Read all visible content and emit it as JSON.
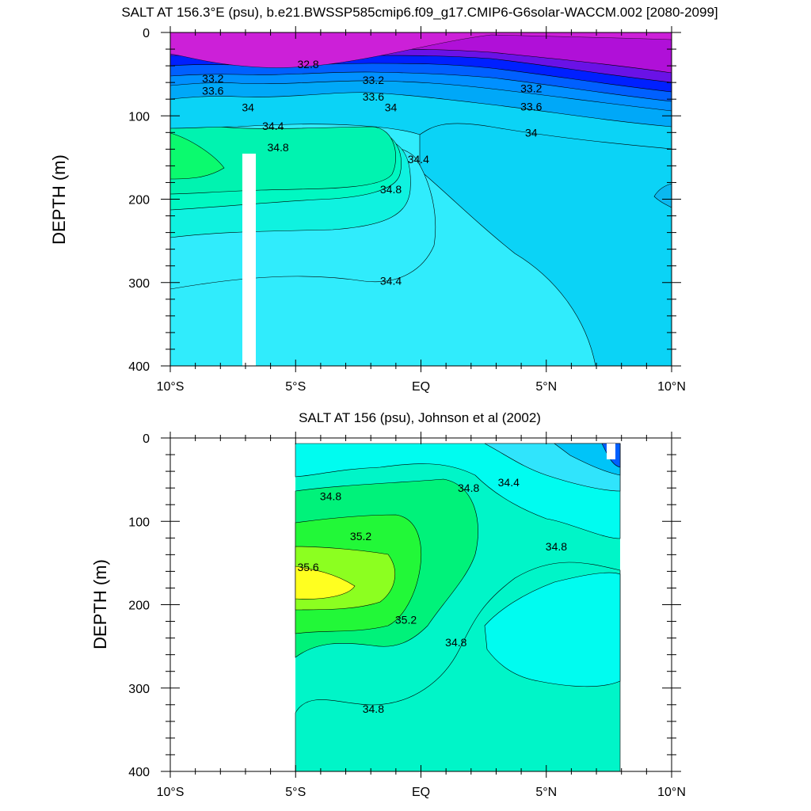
{
  "chart_data": [
    {
      "type": "contour",
      "title": "SALT AT 156.3°E (psu), b.e21.BWSSP585cmip6.f09_g17.CMIP6-G6solar-WACCM.002 [2080-2099]",
      "ylabel": "DEPTH (m)",
      "xlabel": "",
      "x_tick_labels": [
        "10°S",
        "5°S",
        "EQ",
        "5°N",
        "10°N"
      ],
      "x_tick_values": [
        -10,
        -5,
        0,
        5,
        10
      ],
      "y_tick_labels": [
        "0",
        "100",
        "200",
        "300",
        "400"
      ],
      "y_tick_values": [
        0,
        100,
        200,
        300,
        400
      ],
      "xlim": [
        -10,
        10
      ],
      "ylim": [
        400,
        0
      ],
      "y_inverted": true,
      "data_lat_range": [
        -10,
        10
      ],
      "missing_column_lat": [
        -3.3,
        -2.8
      ],
      "missing_column_depth": [
        145,
        400
      ],
      "contour_levels": [
        32.8,
        33.2,
        33.6,
        34.0,
        34.4,
        34.8
      ],
      "contour_labels": [
        {
          "text": "32.8",
          "lat": -4.5,
          "depth": 38
        },
        {
          "text": "33.2",
          "lat": -8.3,
          "depth": 55
        },
        {
          "text": "33.6",
          "lat": -8.3,
          "depth": 70
        },
        {
          "text": "34",
          "lat": -6.9,
          "depth": 90
        },
        {
          "text": "34.4",
          "lat": -5.9,
          "depth": 112
        },
        {
          "text": "34.8",
          "lat": -5.7,
          "depth": 138
        },
        {
          "text": "33.2",
          "lat": -1.9,
          "depth": 57
        },
        {
          "text": "33.6",
          "lat": -1.9,
          "depth": 77
        },
        {
          "text": "34",
          "lat": -1.2,
          "depth": 90
        },
        {
          "text": "34.4",
          "lat": -0.1,
          "depth": 152
        },
        {
          "text": "34.8",
          "lat": -1.2,
          "depth": 188
        },
        {
          "text": "34.4",
          "lat": -1.2,
          "depth": 298
        },
        {
          "text": "33.2",
          "lat": 4.4,
          "depth": 67
        },
        {
          "text": "33.6",
          "lat": 4.4,
          "depth": 89
        },
        {
          "text": "34",
          "lat": 4.4,
          "depth": 120
        }
      ]
    },
    {
      "type": "contour",
      "title": "SALT AT 156 (psu), Johnson et al (2002)",
      "ylabel": "DEPTH (m)",
      "xlabel": "",
      "x_tick_labels": [
        "10°S",
        "5°S",
        "EQ",
        "5°N",
        "10°N"
      ],
      "x_tick_values": [
        -10,
        -5,
        0,
        5,
        10
      ],
      "y_tick_labels": [
        "0",
        "100",
        "200",
        "300",
        "400"
      ],
      "y_tick_values": [
        0,
        100,
        200,
        300,
        400
      ],
      "xlim": [
        -10,
        10
      ],
      "ylim": [
        400,
        0
      ],
      "y_inverted": true,
      "data_lat_range": [
        -5,
        8
      ],
      "contour_levels": [
        34.0,
        34.4,
        34.8,
        35.2,
        35.6
      ],
      "contour_labels": [
        {
          "text": "34.8",
          "lat": -3.6,
          "depth": 70
        },
        {
          "text": "35.2",
          "lat": -2.4,
          "depth": 118
        },
        {
          "text": "35.6",
          "lat": -4.5,
          "depth": 155
        },
        {
          "text": "35.2",
          "lat": -0.6,
          "depth": 218
        },
        {
          "text": "34.8",
          "lat": 1.4,
          "depth": 245
        },
        {
          "text": "34.8",
          "lat": 1.9,
          "depth": 60
        },
        {
          "text": "34.4",
          "lat": 3.5,
          "depth": 53
        },
        {
          "text": "34.8",
          "lat": 5.4,
          "depth": 130
        },
        {
          "text": "34.8",
          "lat": -1.9,
          "depth": 325
        }
      ]
    }
  ]
}
